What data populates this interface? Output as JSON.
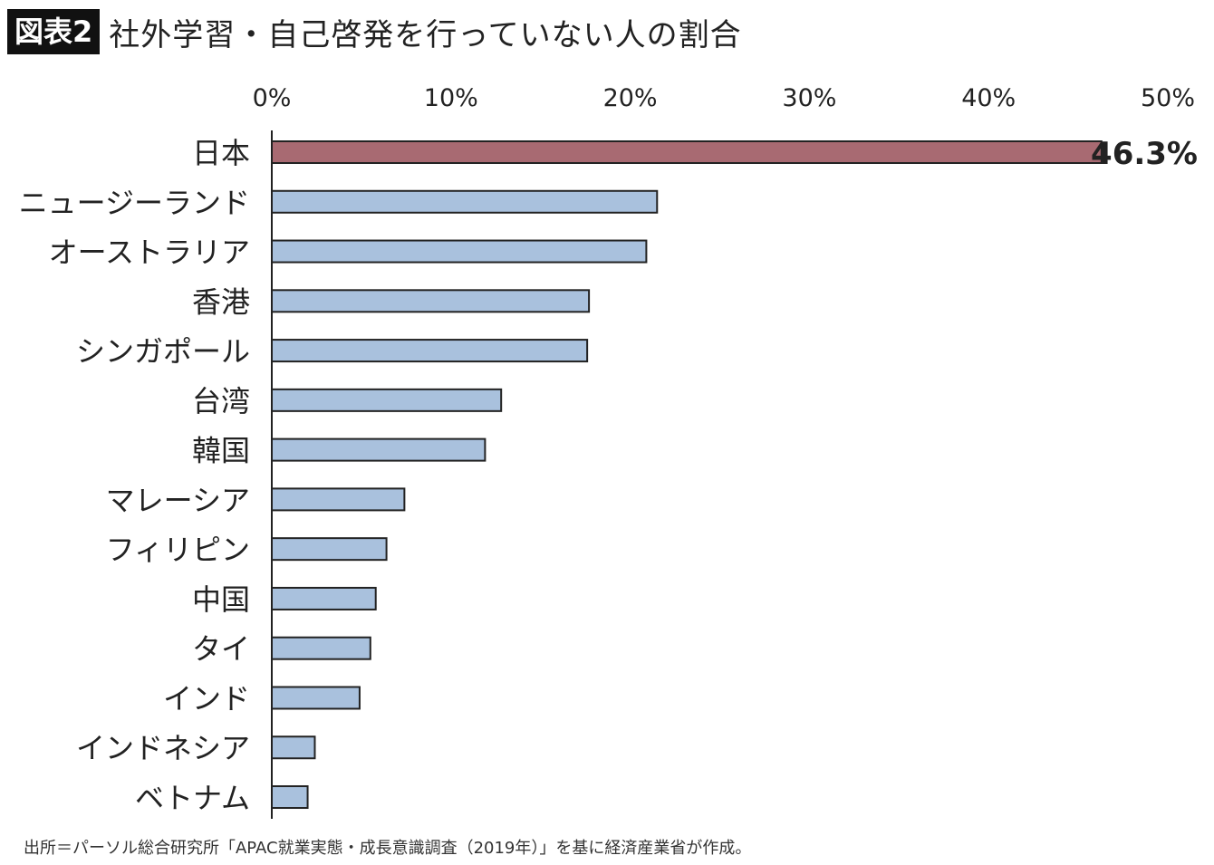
{
  "header": {
    "badge": "図表2",
    "title": "社外学習・自己啓発を行っていない人の割合"
  },
  "chart_data": {
    "type": "bar",
    "orientation": "horizontal",
    "categories": [
      "日本",
      "ニュージーランド",
      "オーストラリア",
      "香港",
      "シンガポール",
      "台湾",
      "韓国",
      "マレーシア",
      "フィリピン",
      "中国",
      "タイ",
      "インド",
      "インドネシア",
      "ベトナム"
    ],
    "values": [
      46.3,
      21.5,
      20.9,
      17.7,
      17.6,
      12.8,
      11.9,
      7.4,
      6.4,
      5.8,
      5.5,
      4.9,
      2.4,
      2.0
    ],
    "data_labels": [
      {
        "category": "日本",
        "text": "46.3%"
      }
    ],
    "xlim": [
      0,
      50
    ],
    "x_ticks": [
      "0%",
      "10%",
      "20%",
      "30%",
      "40%",
      "50%"
    ],
    "x_axis_position": "top",
    "grid": false,
    "colors": {
      "highlight": "#a86a72",
      "default": "#a9c1dd",
      "border": "#222222"
    }
  },
  "footer": {
    "source": "出所＝パーソル総合研究所「APAC就業実態・成長意識調査（2019年）」を基に経済産業省が作成。"
  }
}
